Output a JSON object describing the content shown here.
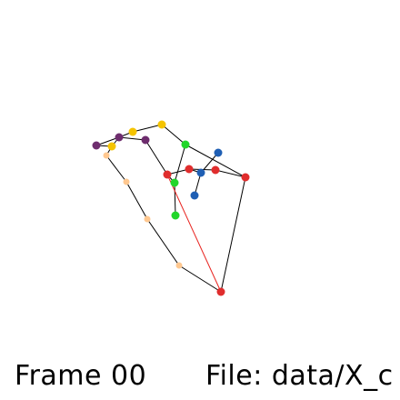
{
  "caption": {
    "frame": "Frame 00",
    "file": "File: data/X_c"
  },
  "colors": {
    "background": "#ffffff",
    "edge": "#000000",
    "edge_highlight": "#e8231f",
    "red": "#e02d2d",
    "yellow": "#f5c400",
    "purple": "#6e2d6e",
    "peach": "#ffc890",
    "green": "#22d62a",
    "blue": "#1f5fb4"
  },
  "node_groups": [
    "red",
    "yellow",
    "purple",
    "peach",
    "green",
    "blue"
  ]
}
